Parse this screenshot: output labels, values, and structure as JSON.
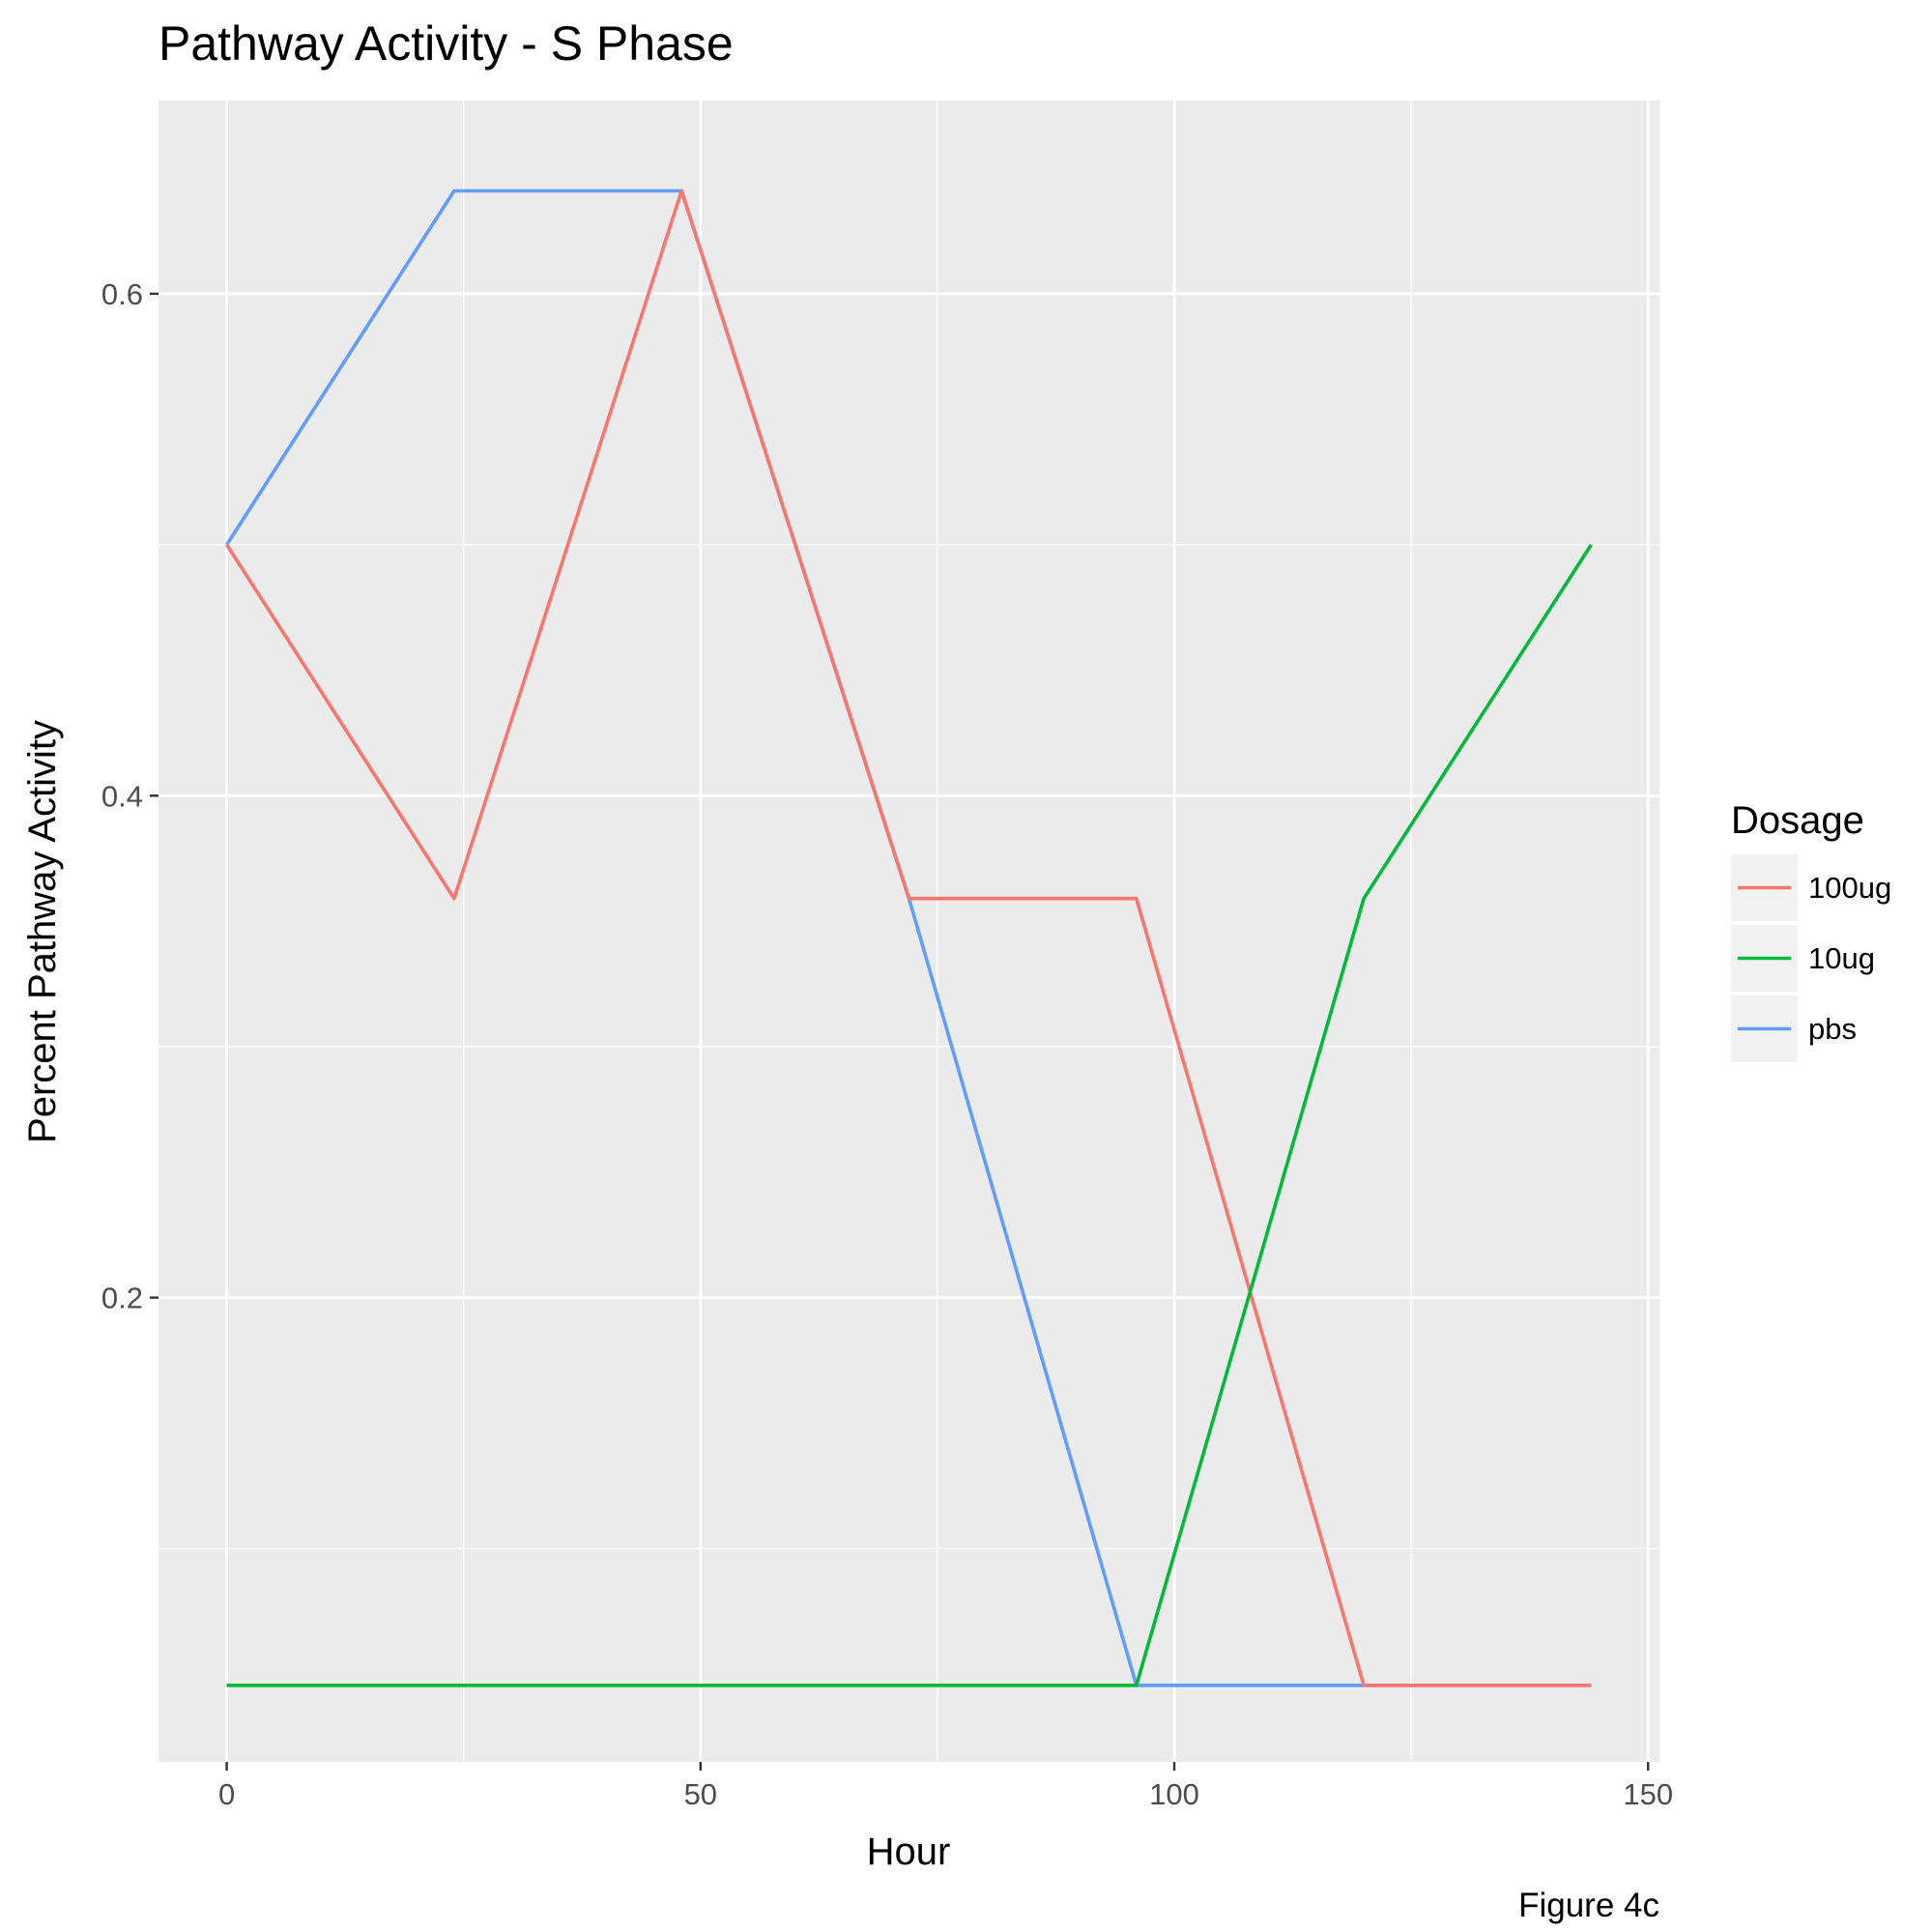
{
  "chart_data": {
    "type": "line",
    "title": "Pathway Activity - S Phase",
    "xlabel": "Hour",
    "ylabel": "Percent Pathway Activity",
    "caption": "Figure 4c",
    "xlim": [
      -7.2,
      151.2
    ],
    "ylim": [
      0.015,
      0.677
    ],
    "x_ticks": [
      0,
      50,
      100,
      150
    ],
    "x_tick_labels": [
      "0",
      "50",
      "100",
      "150"
    ],
    "x_minor_ticks": [
      25,
      75,
      125
    ],
    "y_ticks": [
      0.2,
      0.4,
      0.6
    ],
    "y_tick_labels": [
      "0.2",
      "0.4",
      "0.6"
    ],
    "y_minor_ticks": [
      0.1,
      0.3,
      0.5
    ],
    "grid": true,
    "legend": {
      "title": "Dosage",
      "position": "right"
    },
    "series": [
      {
        "name": "100ug",
        "color": "#F8766D",
        "x": [
          0,
          24,
          48,
          72,
          96,
          120,
          144
        ],
        "y": [
          0.5,
          0.359,
          0.641,
          0.359,
          0.359,
          0.0455,
          0.0455
        ]
      },
      {
        "name": "10ug",
        "color": "#00BA38",
        "x": [
          0,
          24,
          48,
          72,
          96,
          120,
          144
        ],
        "y": [
          0.0455,
          0.0455,
          0.0455,
          0.0455,
          0.0455,
          0.359,
          0.5
        ]
      },
      {
        "name": "pbs",
        "color": "#619CFF",
        "x": [
          0,
          24,
          48,
          72,
          96,
          120,
          144
        ],
        "y": [
          0.5,
          0.641,
          0.641,
          0.359,
          0.0455,
          0.0455,
          0.0455
        ]
      }
    ]
  }
}
